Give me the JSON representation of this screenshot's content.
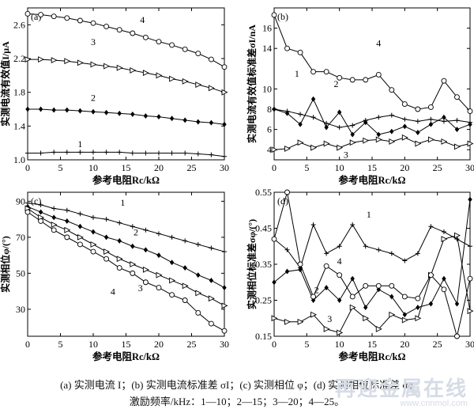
{
  "caption": {
    "line1": "(a) 实测电流 I；(b) 实测电流标准差 σI；(c) 实测相位 φ；(d) 实测相位标准差 σφ",
    "line2": "激励频率/kHz：1—10；2—15；3—20；4—25。"
  },
  "watermark": {
    "line1": "再迎金属在线",
    "line2": "www.cnnmol.com"
  },
  "chart_data": [
    {
      "panel": "(a)",
      "type": "line",
      "xlabel": "参考电阻Rc/kΩ",
      "ylabel": "实测电流有效值I/μA",
      "xlim": [
        0,
        30
      ],
      "ylim": [
        1.0,
        2.8
      ],
      "xticks": [
        0,
        5,
        10,
        15,
        20,
        25,
        30
      ],
      "yticks": [
        1.0,
        1.4,
        1.8,
        2.2,
        2.6
      ],
      "ytick_labels": [
        "1.0",
        "1.4",
        "1.8",
        "2.2",
        "2.6"
      ],
      "series": [
        {
          "name": "1",
          "marker": "plus",
          "label_at": [
            8,
            1.15
          ],
          "x": [
            0,
            2,
            4,
            6,
            8,
            10,
            12,
            14,
            16,
            18,
            20,
            22,
            24,
            26,
            28,
            30
          ],
          "y": [
            1.08,
            1.08,
            1.09,
            1.09,
            1.09,
            1.09,
            1.09,
            1.09,
            1.08,
            1.08,
            1.08,
            1.08,
            1.08,
            1.07,
            1.06,
            1.04
          ]
        },
        {
          "name": "2",
          "marker": "diamond",
          "label_at": [
            10,
            1.7
          ],
          "x": [
            0,
            2,
            4,
            6,
            8,
            10,
            12,
            14,
            16,
            18,
            20,
            22,
            24,
            26,
            28,
            30
          ],
          "y": [
            1.6,
            1.6,
            1.59,
            1.59,
            1.58,
            1.57,
            1.56,
            1.55,
            1.54,
            1.52,
            1.51,
            1.49,
            1.47,
            1.45,
            1.44,
            1.42
          ]
        },
        {
          "name": "3",
          "marker": "triangle",
          "label_at": [
            10,
            2.36
          ],
          "x": [
            0,
            2,
            4,
            6,
            8,
            10,
            12,
            14,
            16,
            18,
            20,
            22,
            24,
            26,
            28,
            30
          ],
          "y": [
            2.19,
            2.19,
            2.18,
            2.17,
            2.15,
            2.13,
            2.11,
            2.09,
            2.06,
            2.03,
            2.0,
            1.96,
            1.93,
            1.89,
            1.85,
            1.8
          ]
        },
        {
          "name": "4",
          "marker": "circle",
          "label_at": [
            17.5,
            2.62
          ],
          "x": [
            0,
            2,
            4,
            6,
            8,
            10,
            12,
            14,
            16,
            18,
            20,
            22,
            24,
            26,
            28,
            30
          ],
          "y": [
            2.73,
            2.72,
            2.7,
            2.68,
            2.65,
            2.62,
            2.58,
            2.54,
            2.5,
            2.45,
            2.4,
            2.36,
            2.31,
            2.26,
            2.19,
            2.1
          ]
        }
      ]
    },
    {
      "panel": "(b)",
      "type": "line",
      "xlabel": "参考电阻Rc/kΩ",
      "ylabel": "实测电流有效值标准差σI/nA",
      "xlim": [
        0,
        30
      ],
      "ylim": [
        3,
        18
      ],
      "xticks": [
        0,
        5,
        10,
        15,
        20,
        25,
        30
      ],
      "yticks": [
        4,
        6,
        8,
        10,
        14,
        16
      ],
      "ytick_labels": [
        "4",
        "6",
        "8",
        "10",
        "14",
        "16"
      ],
      "series": [
        {
          "name": "1",
          "marker": "plus",
          "label_at": [
            3.5,
            11.2
          ],
          "x": [
            0,
            2,
            4,
            6,
            8,
            10,
            12,
            14,
            16,
            18,
            20,
            22,
            24,
            26,
            28,
            30
          ],
          "y": [
            8.0,
            7.8,
            7.5,
            7.2,
            6.6,
            6.2,
            6.4,
            6.9,
            7.2,
            7.4,
            7.0,
            6.8,
            7.0,
            6.8,
            6.9,
            6.7
          ]
        },
        {
          "name": "2",
          "marker": "diamond",
          "label_at": [
            9.5,
            10.2
          ],
          "x": [
            0,
            2,
            4,
            6,
            8,
            10,
            12,
            14,
            16,
            18,
            20,
            22,
            24,
            26,
            28,
            30
          ],
          "y": [
            8.0,
            7.6,
            6.5,
            9.0,
            6.2,
            7.7,
            5.5,
            6.7,
            5.5,
            5.8,
            6.3,
            5.7,
            6.5,
            7.2,
            6.0,
            6.5
          ]
        },
        {
          "name": "3",
          "marker": "triangle",
          "label_at": [
            11,
            3.2
          ],
          "x": [
            0,
            2,
            4,
            6,
            8,
            10,
            12,
            14,
            16,
            18,
            20,
            22,
            24,
            26,
            28,
            30
          ],
          "y": [
            4.0,
            4.1,
            4.7,
            4.2,
            4.6,
            4.2,
            4.7,
            4.9,
            5.0,
            4.8,
            5.2,
            4.6,
            5.0,
            4.8,
            4.3,
            4.6
          ]
        },
        {
          "name": "4",
          "marker": "circle",
          "label_at": [
            16,
            14.2
          ],
          "x": [
            0,
            2,
            4,
            6,
            8,
            10,
            12,
            14,
            16,
            18,
            20,
            22,
            24,
            26,
            28,
            30
          ],
          "y": [
            17.3,
            14.0,
            13.6,
            11.7,
            11.7,
            11.1,
            10.9,
            10.9,
            11.4,
            9.9,
            8.5,
            8.0,
            8.2,
            10.8,
            9.2,
            7.8
          ]
        }
      ]
    },
    {
      "panel": "(c)",
      "type": "line",
      "xlabel": "参考电阻Rc/kΩ",
      "ylabel": "实测相位φ/(°)",
      "xlim": [
        0,
        30
      ],
      "ylim": [
        15,
        95
      ],
      "xticks": [
        0,
        5,
        10,
        15,
        20,
        25,
        30
      ],
      "yticks": [
        30,
        50,
        70,
        90
      ],
      "ytick_labels": [
        "30",
        "50",
        "70",
        "90"
      ],
      "series": [
        {
          "name": "1",
          "marker": "plus",
          "label_at": [
            14.5,
            87.5
          ],
          "x": [
            0,
            2,
            4,
            6,
            8,
            10,
            12,
            14,
            16,
            18,
            20,
            22,
            24,
            26,
            28,
            30
          ],
          "y": [
            89,
            88,
            86,
            85,
            83,
            81,
            80,
            78,
            76,
            74,
            72,
            70,
            68,
            66,
            64,
            62
          ]
        },
        {
          "name": "2",
          "marker": "diamond",
          "label_at": [
            16.5,
            71
          ],
          "x": [
            0,
            2,
            4,
            6,
            8,
            10,
            12,
            14,
            16,
            18,
            20,
            22,
            24,
            26,
            28,
            30
          ],
          "y": [
            87,
            84,
            81,
            79,
            76,
            73,
            70,
            68,
            65,
            63,
            60,
            56,
            53,
            49,
            46,
            42
          ]
        },
        {
          "name": "3",
          "marker": "triangle",
          "label_at": [
            17.2,
            40
          ],
          "x": [
            0,
            2,
            4,
            6,
            8,
            10,
            12,
            14,
            16,
            18,
            20,
            22,
            24,
            26,
            28,
            30
          ],
          "y": [
            86,
            81,
            77,
            74,
            70,
            66,
            62,
            58,
            55,
            52,
            49,
            46,
            43,
            39,
            36,
            32
          ]
        },
        {
          "name": "4",
          "marker": "circle",
          "label_at": [
            13,
            38
          ],
          "x": [
            0,
            2,
            4,
            6,
            8,
            10,
            12,
            14,
            16,
            18,
            20,
            22,
            24,
            26,
            28,
            30
          ],
          "y": [
            84,
            79,
            74,
            70,
            66,
            62,
            58,
            53,
            50,
            45,
            42,
            38,
            35,
            28,
            22,
            18
          ]
        }
      ]
    },
    {
      "panel": "(d)",
      "type": "line",
      "xlabel": "参考电阻Rc/kΩ",
      "ylabel": "实测相位标准差σφ/(°)",
      "xlim": [
        0,
        30
      ],
      "ylim": [
        0.15,
        0.55
      ],
      "xticks": [
        0,
        5,
        10,
        15,
        20,
        25,
        30
      ],
      "yticks": [
        0.15,
        0.25,
        0.35,
        0.45,
        0.55
      ],
      "ytick_labels": [
        "0.15",
        "0.25",
        "0.35",
        "0.45",
        "0.55"
      ],
      "series": [
        {
          "name": "1",
          "marker": "plus",
          "label_at": [
            14.5,
            0.48
          ],
          "x": [
            0,
            2,
            4,
            6,
            8,
            10,
            12,
            14,
            16,
            18,
            20,
            22,
            24,
            26,
            28,
            30
          ],
          "y": [
            0.42,
            0.39,
            0.34,
            0.46,
            0.38,
            0.4,
            0.46,
            0.4,
            0.39,
            0.38,
            0.36,
            0.38,
            0.455,
            0.44,
            0.42,
            0.4
          ]
        },
        {
          "name": "2",
          "marker": "diamond",
          "label_at": [
            6.5,
            0.27
          ],
          "x": [
            0,
            2,
            4,
            6,
            8,
            10,
            12,
            14,
            16,
            18,
            20,
            22,
            24,
            26,
            28,
            30
          ],
          "y": [
            0.3,
            0.33,
            0.335,
            0.25,
            0.285,
            0.25,
            0.31,
            0.23,
            0.28,
            0.26,
            0.21,
            0.23,
            0.24,
            0.31,
            0.24,
            0.53
          ]
        },
        {
          "name": "3",
          "marker": "triangle",
          "label_at": [
            8.5,
            0.19
          ],
          "x": [
            0,
            2,
            4,
            6,
            8,
            10,
            12,
            14,
            16,
            18,
            20,
            22,
            24,
            26,
            28,
            30
          ],
          "y": [
            0.2,
            0.19,
            0.19,
            0.21,
            0.17,
            0.16,
            0.23,
            0.2,
            0.17,
            0.21,
            0.195,
            0.2,
            0.32,
            0.42,
            0.43,
            0.22
          ]
        },
        {
          "name": "4",
          "marker": "circle",
          "label_at": [
            10,
            0.35
          ],
          "x": [
            0,
            2,
            4,
            6,
            8,
            10,
            12,
            14,
            16,
            18,
            20,
            22,
            24,
            26,
            28,
            30
          ],
          "y": [
            0.42,
            0.55,
            0.35,
            0.26,
            0.345,
            0.32,
            0.26,
            0.29,
            0.29,
            0.29,
            0.26,
            0.255,
            0.32,
            0.28,
            0.15,
            0.31
          ]
        }
      ]
    }
  ]
}
